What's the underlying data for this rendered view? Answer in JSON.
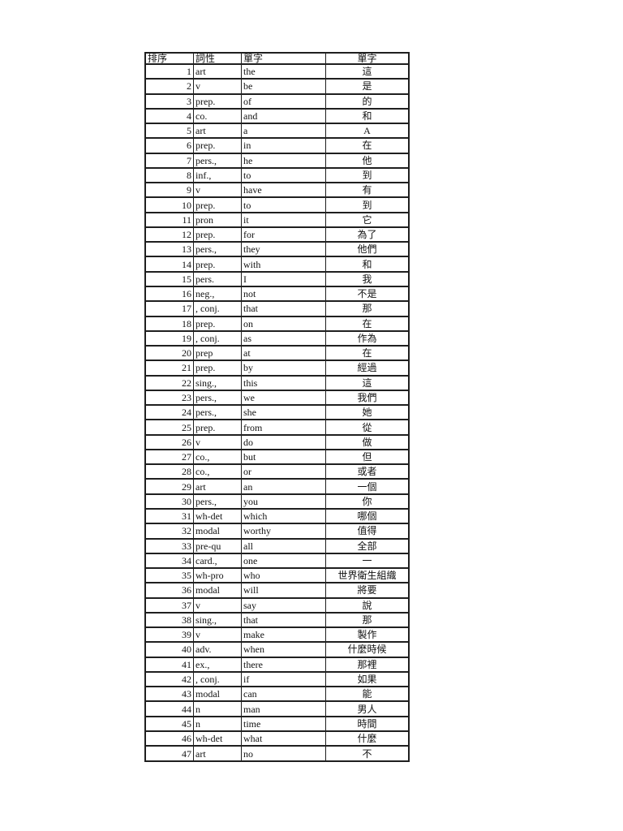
{
  "colors": {
    "page_background": "#ffffff",
    "table_border": "#1f1f1f",
    "text": "#121212"
  },
  "table": {
    "headers": [
      "排序",
      "詞性",
      "單字",
      "單字"
    ],
    "rows": [
      [
        1,
        "art",
        "the",
        "這"
      ],
      [
        2,
        "v",
        "be",
        "是"
      ],
      [
        3,
        "prep.",
        "of",
        "的"
      ],
      [
        4,
        "co.",
        "and",
        "和"
      ],
      [
        5,
        "art",
        "a",
        "A"
      ],
      [
        6,
        "prep.",
        "in",
        "在"
      ],
      [
        7,
        "pers.,",
        "he",
        "他"
      ],
      [
        8,
        "inf.,",
        "to",
        "到"
      ],
      [
        9,
        "v",
        "have",
        "有"
      ],
      [
        10,
        "prep.",
        "to",
        "到"
      ],
      [
        11,
        "pron",
        "it",
        "它"
      ],
      [
        12,
        "prep.",
        "for",
        "為了"
      ],
      [
        13,
        "pers.,",
        "they",
        "他們"
      ],
      [
        14,
        "prep.",
        "with",
        "和"
      ],
      [
        15,
        "pers.",
        "I",
        "我"
      ],
      [
        16,
        "neg.,",
        "not",
        "不是"
      ],
      [
        17,
        ", conj.",
        "that",
        "那"
      ],
      [
        18,
        "prep.",
        "on",
        "在"
      ],
      [
        19,
        ", conj.",
        "as",
        "作為"
      ],
      [
        20,
        "prep",
        "at",
        "在"
      ],
      [
        21,
        "prep.",
        "by",
        "經過"
      ],
      [
        22,
        "sing.,",
        "this",
        "這"
      ],
      [
        23,
        "pers.,",
        "we",
        "我們"
      ],
      [
        24,
        "pers.,",
        "she",
        "她"
      ],
      [
        25,
        "prep.",
        "from",
        "從"
      ],
      [
        26,
        "v",
        "do",
        "做"
      ],
      [
        27,
        "co.,",
        "but",
        "但"
      ],
      [
        28,
        "co.,",
        "or",
        "或者"
      ],
      [
        29,
        "art",
        "an",
        "一個"
      ],
      [
        30,
        "pers.,",
        "you",
        "你"
      ],
      [
        31,
        "wh-det",
        "which",
        "哪個"
      ],
      [
        32,
        "modal",
        "worthy",
        "值得"
      ],
      [
        33,
        "pre-qu",
        "all",
        "全部"
      ],
      [
        34,
        "card.,",
        "one",
        "一"
      ],
      [
        35,
        "wh-pro",
        "who",
        "世界衛生組織"
      ],
      [
        36,
        "modal",
        "will",
        "將要"
      ],
      [
        37,
        "v",
        "say",
        "說"
      ],
      [
        38,
        "sing.,",
        "that",
        "那"
      ],
      [
        39,
        "v",
        "make",
        "製作"
      ],
      [
        40,
        "adv.",
        "when",
        "什麼時候"
      ],
      [
        41,
        "ex.,",
        "there",
        "那裡"
      ],
      [
        42,
        ", conj.",
        "if",
        "如果"
      ],
      [
        43,
        "modal",
        "can",
        "能"
      ],
      [
        44,
        "n",
        "man",
        "男人"
      ],
      [
        45,
        "n",
        "time",
        "時間"
      ],
      [
        46,
        "wh-det",
        "what",
        "什麼"
      ],
      [
        47,
        "art",
        "no",
        "不"
      ]
    ]
  }
}
